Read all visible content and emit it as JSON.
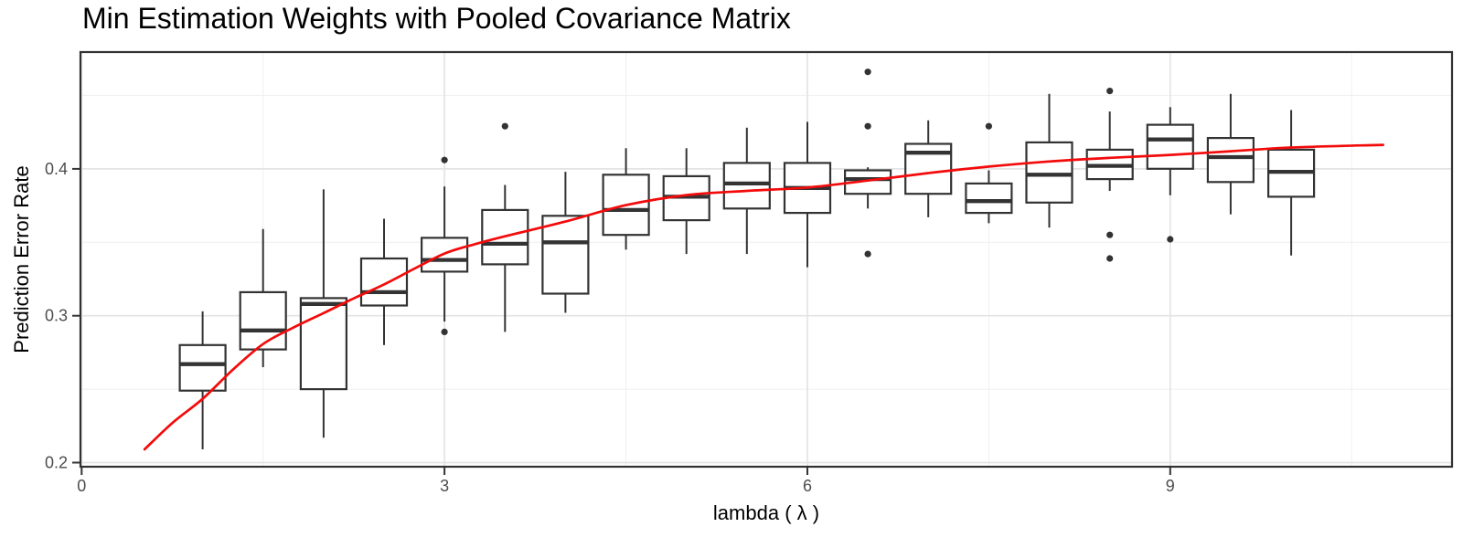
{
  "chart_data": {
    "type": "boxplot",
    "title": "Min Estimation Weights with Pooled Covariance Matrix",
    "xlabel": "lambda ( λ )",
    "ylabel": "Prediction Error Rate",
    "xlim": [
      -0.01,
      11.33
    ],
    "ylim": [
      0.1972,
      0.4795
    ],
    "x_major_ticks": [
      0,
      3,
      6,
      9
    ],
    "x_tick_labels": [
      "0",
      "3",
      "6",
      "9"
    ],
    "x_minor_ticks": [
      1.5,
      4.5,
      7.5,
      10.5
    ],
    "y_major_ticks": [
      0.2,
      0.3,
      0.4
    ],
    "y_tick_labels": [
      "0.2",
      "0.3",
      "0.4"
    ],
    "y_minor_ticks": [
      0.25,
      0.35,
      0.45
    ],
    "grid": true,
    "legend": "none",
    "box_width": 0.378,
    "boxes": [
      {
        "lambda": 1.0,
        "whisker_low": 0.209,
        "q1": 0.249,
        "median": 0.267,
        "q3": 0.28,
        "whisker_high": 0.303,
        "outliers": []
      },
      {
        "lambda": 1.5,
        "whisker_low": 0.265,
        "q1": 0.277,
        "median": 0.29,
        "q3": 0.316,
        "whisker_high": 0.359,
        "outliers": []
      },
      {
        "lambda": 2.0,
        "whisker_low": 0.217,
        "q1": 0.25,
        "median": 0.308,
        "q3": 0.312,
        "whisker_high": 0.386,
        "outliers": []
      },
      {
        "lambda": 2.5,
        "whisker_low": 0.28,
        "q1": 0.307,
        "median": 0.316,
        "q3": 0.339,
        "whisker_high": 0.366,
        "outliers": []
      },
      {
        "lambda": 3.0,
        "whisker_low": 0.296,
        "q1": 0.33,
        "median": 0.338,
        "q3": 0.353,
        "whisker_high": 0.388,
        "outliers": [
          0.406,
          0.289
        ]
      },
      {
        "lambda": 3.5,
        "whisker_low": 0.289,
        "q1": 0.335,
        "median": 0.349,
        "q3": 0.372,
        "whisker_high": 0.389,
        "outliers": [
          0.429
        ]
      },
      {
        "lambda": 4.0,
        "whisker_low": 0.302,
        "q1": 0.315,
        "median": 0.35,
        "q3": 0.368,
        "whisker_high": 0.398,
        "outliers": []
      },
      {
        "lambda": 4.5,
        "whisker_low": 0.345,
        "q1": 0.355,
        "median": 0.372,
        "q3": 0.396,
        "whisker_high": 0.414,
        "outliers": []
      },
      {
        "lambda": 5.0,
        "whisker_low": 0.342,
        "q1": 0.365,
        "median": 0.381,
        "q3": 0.395,
        "whisker_high": 0.414,
        "outliers": []
      },
      {
        "lambda": 5.5,
        "whisker_low": 0.342,
        "q1": 0.373,
        "median": 0.39,
        "q3": 0.404,
        "whisker_high": 0.428,
        "outliers": []
      },
      {
        "lambda": 6.0,
        "whisker_low": 0.333,
        "q1": 0.37,
        "median": 0.387,
        "q3": 0.404,
        "whisker_high": 0.432,
        "outliers": []
      },
      {
        "lambda": 6.5,
        "whisker_low": 0.373,
        "q1": 0.383,
        "median": 0.393,
        "q3": 0.399,
        "whisker_high": 0.401,
        "outliers": [
          0.466,
          0.429,
          0.342
        ]
      },
      {
        "lambda": 7.0,
        "whisker_low": 0.367,
        "q1": 0.383,
        "median": 0.411,
        "q3": 0.417,
        "whisker_high": 0.433,
        "outliers": []
      },
      {
        "lambda": 7.5,
        "whisker_low": 0.363,
        "q1": 0.37,
        "median": 0.378,
        "q3": 0.39,
        "whisker_high": 0.399,
        "outliers": [
          0.429
        ]
      },
      {
        "lambda": 8.0,
        "whisker_low": 0.36,
        "q1": 0.377,
        "median": 0.396,
        "q3": 0.418,
        "whisker_high": 0.451,
        "outliers": []
      },
      {
        "lambda": 8.5,
        "whisker_low": 0.385,
        "q1": 0.393,
        "median": 0.402,
        "q3": 0.413,
        "whisker_high": 0.439,
        "outliers": [
          0.453,
          0.355,
          0.339
        ]
      },
      {
        "lambda": 9.0,
        "whisker_low": 0.382,
        "q1": 0.4,
        "median": 0.42,
        "q3": 0.43,
        "whisker_high": 0.442,
        "outliers": [
          0.352
        ]
      },
      {
        "lambda": 9.5,
        "whisker_low": 0.369,
        "q1": 0.391,
        "median": 0.408,
        "q3": 0.421,
        "whisker_high": 0.451,
        "outliers": []
      },
      {
        "lambda": 10.0,
        "whisker_low": 0.341,
        "q1": 0.381,
        "median": 0.398,
        "q3": 0.413,
        "whisker_high": 0.44,
        "outliers": []
      }
    ],
    "smooth_line": {
      "name": "smooth-fit",
      "points": [
        [
          0.52,
          0.209
        ],
        [
          0.75,
          0.227
        ],
        [
          1.0,
          0.2434
        ],
        [
          1.25,
          0.2633
        ],
        [
          1.5,
          0.2807
        ],
        [
          1.75,
          0.2919
        ],
        [
          2.0,
          0.3018
        ],
        [
          2.25,
          0.3118
        ],
        [
          2.5,
          0.3213
        ],
        [
          2.75,
          0.332
        ],
        [
          3.0,
          0.3423
        ],
        [
          3.25,
          0.3487
        ],
        [
          3.5,
          0.3541
        ],
        [
          4.0,
          0.3641
        ],
        [
          4.5,
          0.3753
        ],
        [
          5.0,
          0.3821
        ],
        [
          5.5,
          0.385
        ],
        [
          6.0,
          0.3873
        ],
        [
          6.5,
          0.392
        ],
        [
          7.0,
          0.3971
        ],
        [
          7.5,
          0.4015
        ],
        [
          8.0,
          0.405
        ],
        [
          8.5,
          0.4075
        ],
        [
          9.0,
          0.4095
        ],
        [
          9.5,
          0.412
        ],
        [
          10.0,
          0.4145
        ],
        [
          10.76,
          0.4163
        ]
      ]
    },
    "colors": {
      "smooth_line": "#f30b0b",
      "box_stroke": "#333333",
      "box_fill": "#ffffff",
      "median": "#333333",
      "outlier": "#333333",
      "grid_major": "#e4e4e4",
      "grid_minor": "#efefef",
      "panel_border": "#323232",
      "tick_mark": "#333333",
      "tick_label": "#4d4d4d",
      "title_text": "#000000",
      "background": "#ffffff"
    }
  }
}
